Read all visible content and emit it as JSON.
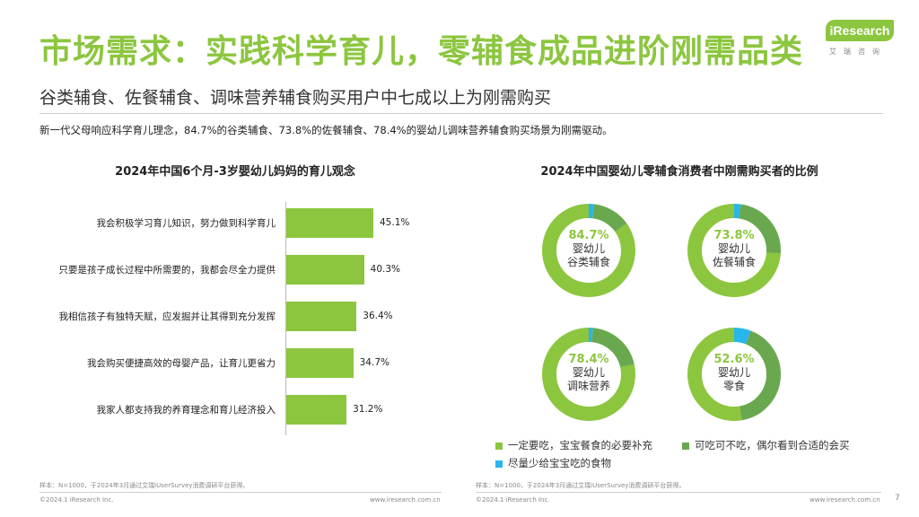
{
  "header": {
    "title": "市场需求：实践科学育儿，零辅食成品进阶刚需品类",
    "subtitle": "谷类辅食、佐餐辅食、调味营养辅食购买用户中七成以上为刚需购买",
    "description": "新一代父母响应科学育儿理念，84.7%的谷类辅食、73.8%的佐餐辅食、78.4%的婴幼儿调味营养辅食购买场景为刚需驱动。"
  },
  "logo": {
    "brand": "iResearch",
    "sub": "艾瑞咨询"
  },
  "colors": {
    "accent": "#8cc63f",
    "dark_green": "#6aa84f",
    "cyan": "#29b6e8"
  },
  "chart_data": [
    {
      "type": "bar",
      "title": "2024年中国6个月-3岁婴幼儿妈妈的育儿观念",
      "categories": [
        "我会积极学习育儿知识，努力做到科学育儿",
        "只要是孩子成长过程中所需要的，我都会尽全力提供",
        "我相信孩子有独特天赋，应发掘并让其得到充分发挥",
        "我会购买便捷高效的母婴产品，让育儿更省力",
        "我家人都支持我的养育理念和育儿经济投入"
      ],
      "values": [
        45.1,
        40.3,
        36.4,
        34.7,
        31.2
      ],
      "value_labels": [
        "45.1%",
        "40.3%",
        "36.4%",
        "34.7%",
        "31.2%"
      ],
      "orientation": "horizontal"
    },
    {
      "type": "pie",
      "title": "2024年中国婴幼儿零辅食消费者中刚需购买者的比例",
      "legend": [
        "一定要吃，宝宝餐食的必要补充",
        "可吃可不吃，偶尔看到合适的会买",
        "尽量少给宝宝吃的食物"
      ],
      "donuts": [
        {
          "label_pct": "84.7%",
          "line1": "婴幼儿",
          "line2": "谷类辅食",
          "values": [
            84.7,
            13.3,
            2.0
          ]
        },
        {
          "label_pct": "73.8%",
          "line1": "婴幼儿",
          "line2": "佐餐辅食",
          "values": [
            73.8,
            23.7,
            2.5
          ]
        },
        {
          "label_pct": "78.4%",
          "line1": "婴幼儿",
          "line2": "调味营养",
          "values": [
            78.4,
            20.0,
            1.6
          ]
        },
        {
          "label_pct": "52.6%",
          "line1": "婴幼儿",
          "line2": "零食",
          "values": [
            52.6,
            41.4,
            6.0
          ]
        }
      ]
    }
  ],
  "footer": {
    "note_left": "样本：N=1000，于2024年3月通过艾瑞iUserSurvey消费调研平台获得。",
    "note_right": "样本：N=1000，于2024年3月通过艾瑞iUserSurvey消费调研平台获得。",
    "copyright_left": "©2024.1 iResearch Inc.",
    "url_left": "www.iresearch.com.cn",
    "copyright_right": "©2024.1 iResearch Inc.",
    "url_right": "www.iresearch.com.cn",
    "page": "7"
  }
}
